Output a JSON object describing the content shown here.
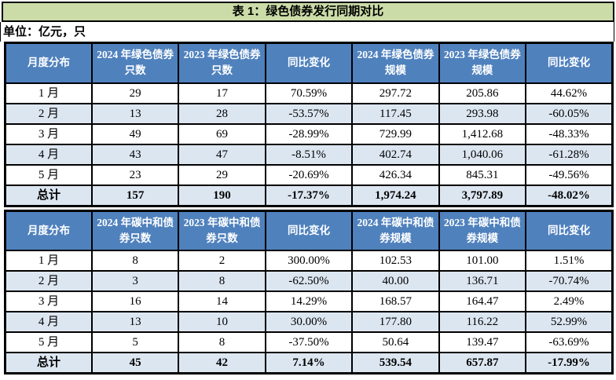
{
  "title": "表 1：绿色债券发行同期对比",
  "unit_note": "单位：亿元，只",
  "colors": {
    "title_bg": "#cbdca8",
    "header_bg": "#4f81bd",
    "header_text": "#ffffff",
    "alt_row_bg": "#dce6f1",
    "row_bg": "#ffffff",
    "border": "#000000",
    "text": "#000000"
  },
  "chart_data": [
    {
      "type": "table",
      "columns": [
        "月度分布",
        "2024 年绿色债券只数",
        "2023 年绿色债券只数",
        "同比变化",
        "2024 年绿色债券规模",
        "2023 年绿色债券规模",
        "同比变化"
      ],
      "rows": [
        [
          "1 月",
          "29",
          "17",
          "70.59%",
          "297.72",
          "205.86",
          "44.62%"
        ],
        [
          "2 月",
          "13",
          "28",
          "-53.57%",
          "117.45",
          "293.98",
          "-60.05%"
        ],
        [
          "3 月",
          "49",
          "69",
          "-28.99%",
          "729.99",
          "1,412.68",
          "-48.33%"
        ],
        [
          "4 月",
          "43",
          "47",
          "-8.51%",
          "402.74",
          "1,040.06",
          "-61.28%"
        ],
        [
          "5 月",
          "23",
          "29",
          "-20.69%",
          "426.34",
          "845.31",
          "-49.56%"
        ],
        [
          "总计",
          "157",
          "190",
          "-17.37%",
          "1,974.24",
          "3,797.89",
          "-48.02%"
        ]
      ]
    },
    {
      "type": "table",
      "columns": [
        "月度分布",
        "2024 年碳中和债券只数",
        "2023 年碳中和债券只数",
        "同比变化",
        "2024 年碳中和债券规模",
        "2023 年碳中和债券规模",
        "同比变化"
      ],
      "rows": [
        [
          "1 月",
          "8",
          "2",
          "300.00%",
          "102.53",
          "101.00",
          "1.51%"
        ],
        [
          "2 月",
          "3",
          "8",
          "-62.50%",
          "40.00",
          "136.71",
          "-70.74%"
        ],
        [
          "3 月",
          "16",
          "14",
          "14.29%",
          "168.57",
          "164.47",
          "2.49%"
        ],
        [
          "4 月",
          "13",
          "10",
          "30.00%",
          "177.80",
          "116.22",
          "52.99%"
        ],
        [
          "5 月",
          "5",
          "8",
          "-37.50%",
          "50.64",
          "139.47",
          "-63.69%"
        ],
        [
          "总计",
          "45",
          "42",
          "7.14%",
          "539.54",
          "657.87",
          "-17.99%"
        ]
      ]
    }
  ]
}
